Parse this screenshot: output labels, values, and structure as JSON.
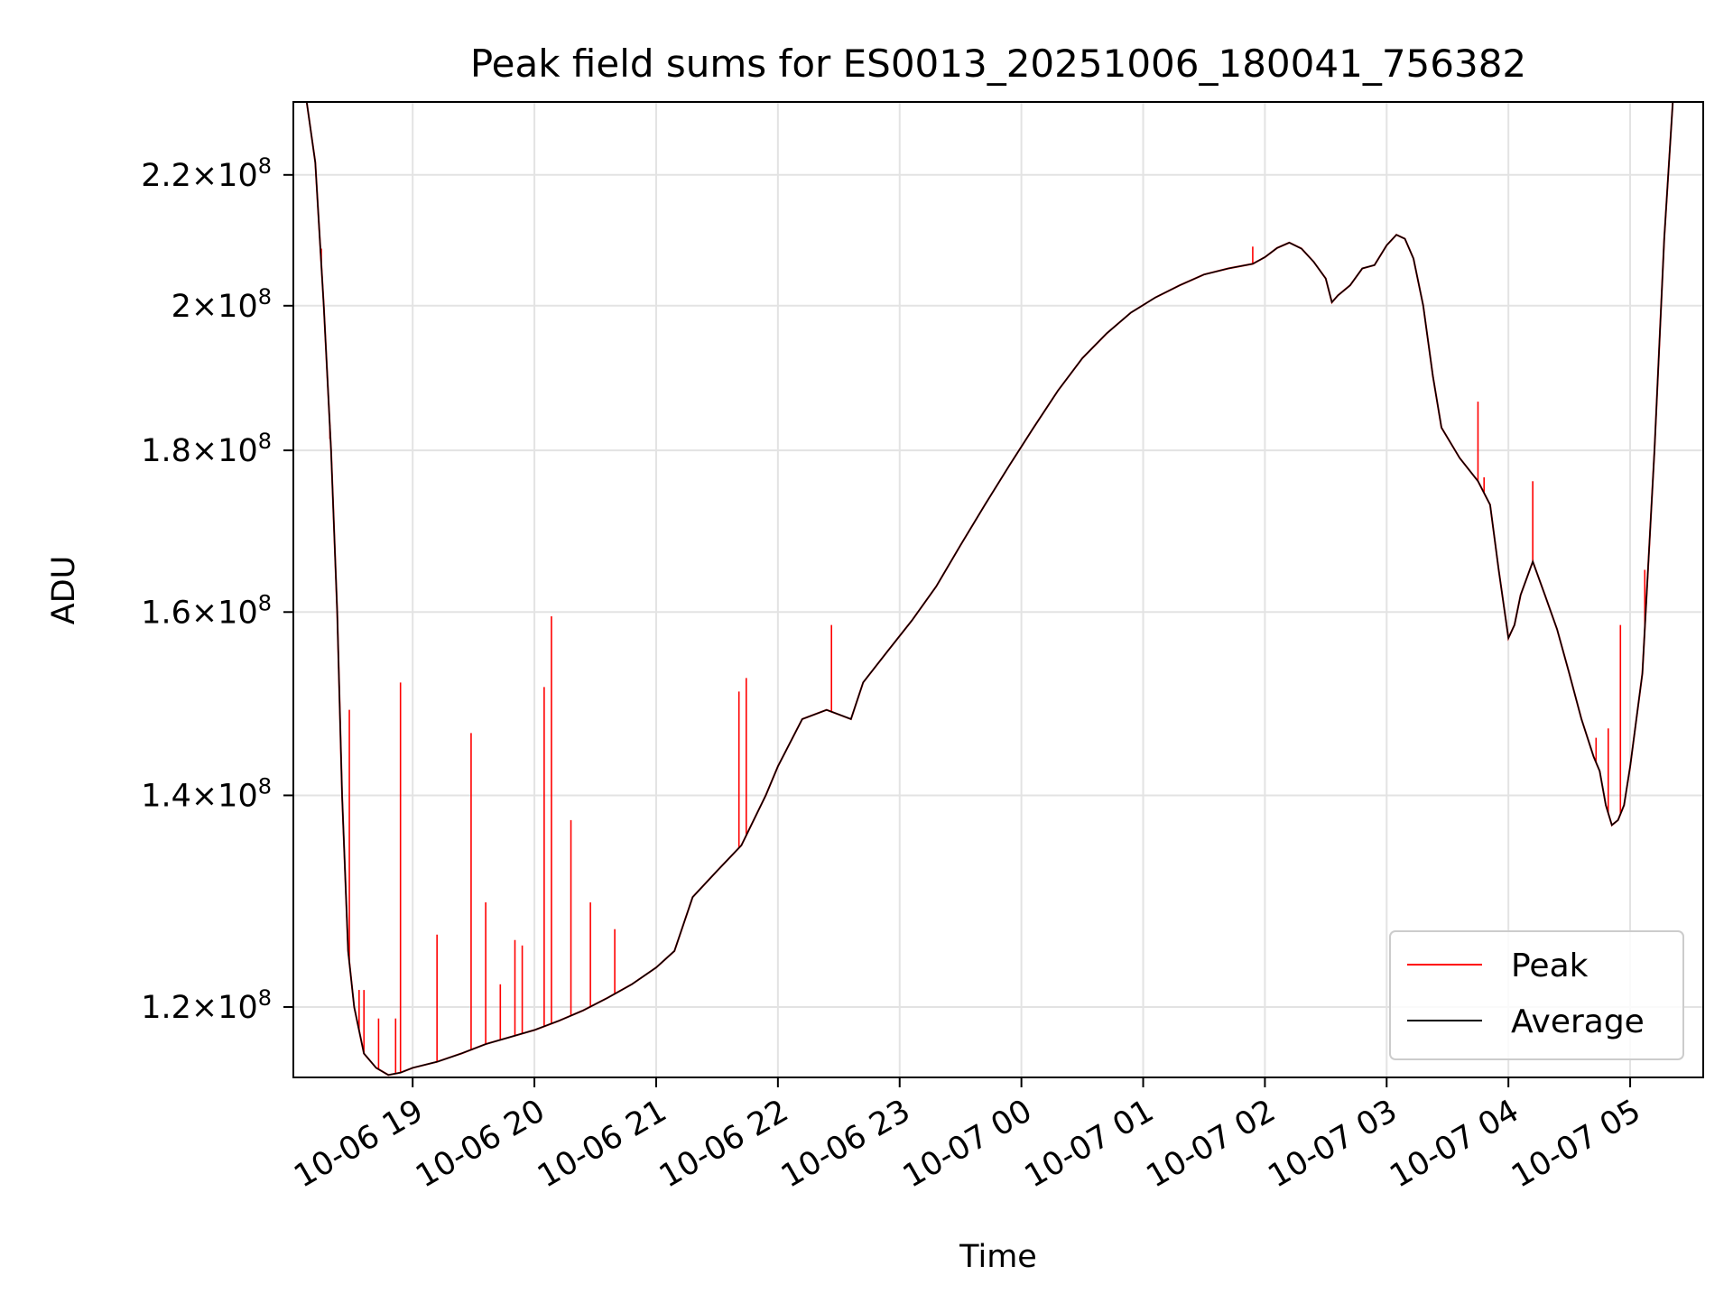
{
  "chart_data": {
    "type": "line",
    "title": "Peak field sums for ES0013_20251006_180041_756382",
    "xlabel": "Time",
    "ylabel": "ADU",
    "yscale": "log",
    "ylim": [
      114000000,
      232000000
    ],
    "xlim_hours": [
      18.02,
      29.6
    ],
    "grid": true,
    "legend": "lower right",
    "x_ticks": [
      {
        "h": 19,
        "label": "10-06 19"
      },
      {
        "h": 20,
        "label": "10-06 20"
      },
      {
        "h": 21,
        "label": "10-06 21"
      },
      {
        "h": 22,
        "label": "10-06 22"
      },
      {
        "h": 23,
        "label": "10-06 23"
      },
      {
        "h": 24,
        "label": "10-07 00"
      },
      {
        "h": 25,
        "label": "10-07 01"
      },
      {
        "h": 26,
        "label": "10-07 02"
      },
      {
        "h": 27,
        "label": "10-07 03"
      },
      {
        "h": 28,
        "label": "10-07 04"
      },
      {
        "h": 29,
        "label": "10-07 05"
      }
    ],
    "y_ticks": [
      {
        "v": 120000000,
        "mant": "1.2",
        "exp": "8"
      },
      {
        "v": 140000000,
        "mant": "1.4",
        "exp": "8"
      },
      {
        "v": 160000000,
        "mant": "1.6",
        "exp": "8"
      },
      {
        "v": 180000000,
        "mant": "1.8",
        "exp": "8"
      },
      {
        "v": 200000000,
        "mant": "2",
        "exp": "8"
      },
      {
        "v": 220000000,
        "mant": "2.2",
        "exp": "8"
      }
    ],
    "series": [
      {
        "name": "Average",
        "color": "#000000",
        "points": [
          [
            18.13,
            232000000
          ],
          [
            18.2,
            222000000
          ],
          [
            18.27,
            200000000
          ],
          [
            18.33,
            180000000
          ],
          [
            18.38,
            160000000
          ],
          [
            18.42,
            140000000
          ],
          [
            18.47,
            125000000
          ],
          [
            18.52,
            120000000
          ],
          [
            18.6,
            116000000
          ],
          [
            18.7,
            114800000
          ],
          [
            18.8,
            114200000
          ],
          [
            18.9,
            114400000
          ],
          [
            19.0,
            114800000
          ],
          [
            19.2,
            115300000
          ],
          [
            19.4,
            116000000
          ],
          [
            19.6,
            116800000
          ],
          [
            19.8,
            117400000
          ],
          [
            20.0,
            118000000
          ],
          [
            20.2,
            118800000
          ],
          [
            20.4,
            119700000
          ],
          [
            20.6,
            120800000
          ],
          [
            20.8,
            122000000
          ],
          [
            21.0,
            123500000
          ],
          [
            21.15,
            125000000
          ],
          [
            21.3,
            130000000
          ],
          [
            21.5,
            132500000
          ],
          [
            21.7,
            135000000
          ],
          [
            21.9,
            140000000
          ],
          [
            22.0,
            143000000
          ],
          [
            22.2,
            148000000
          ],
          [
            22.4,
            149000000
          ],
          [
            22.5,
            148500000
          ],
          [
            22.6,
            148000000
          ],
          [
            22.7,
            152000000
          ],
          [
            22.9,
            155500000
          ],
          [
            23.1,
            159000000
          ],
          [
            23.3,
            163000000
          ],
          [
            23.5,
            168000000
          ],
          [
            23.7,
            173000000
          ],
          [
            23.9,
            178000000
          ],
          [
            24.1,
            183000000
          ],
          [
            24.3,
            188000000
          ],
          [
            24.5,
            192500000
          ],
          [
            24.7,
            196000000
          ],
          [
            24.9,
            199000000
          ],
          [
            25.1,
            201200000
          ],
          [
            25.3,
            203000000
          ],
          [
            25.5,
            204600000
          ],
          [
            25.7,
            205500000
          ],
          [
            25.9,
            206200000
          ],
          [
            26.0,
            207200000
          ],
          [
            26.1,
            208600000
          ],
          [
            26.2,
            209400000
          ],
          [
            26.3,
            208500000
          ],
          [
            26.4,
            206500000
          ],
          [
            26.5,
            204000000
          ],
          [
            26.55,
            200500000
          ],
          [
            26.6,
            201500000
          ],
          [
            26.7,
            203000000
          ],
          [
            26.8,
            205500000
          ],
          [
            26.9,
            206000000
          ],
          [
            27.0,
            209000000
          ],
          [
            27.08,
            210600000
          ],
          [
            27.15,
            210000000
          ],
          [
            27.22,
            207000000
          ],
          [
            27.3,
            200000000
          ],
          [
            27.38,
            190000000
          ],
          [
            27.45,
            183000000
          ],
          [
            27.6,
            179000000
          ],
          [
            27.75,
            176000000
          ],
          [
            27.85,
            173000000
          ],
          [
            27.92,
            165000000
          ],
          [
            28.0,
            157000000
          ],
          [
            28.05,
            158500000
          ],
          [
            28.1,
            162000000
          ],
          [
            28.2,
            166000000
          ],
          [
            28.3,
            162000000
          ],
          [
            28.4,
            158000000
          ],
          [
            28.5,
            153000000
          ],
          [
            28.6,
            148000000
          ],
          [
            28.7,
            144000000
          ],
          [
            28.75,
            142500000
          ],
          [
            28.8,
            139000000
          ],
          [
            28.85,
            137000000
          ],
          [
            28.9,
            137500000
          ],
          [
            28.95,
            139000000
          ],
          [
            29.0,
            143000000
          ],
          [
            29.1,
            153000000
          ],
          [
            29.2,
            180000000
          ],
          [
            29.28,
            210000000
          ],
          [
            29.35,
            232000000
          ]
        ]
      },
      {
        "name": "Peak",
        "color": "#ff0000",
        "spikes": [
          [
            18.25,
            208500000
          ],
          [
            18.32,
            181500000
          ],
          [
            18.48,
            149000000
          ],
          [
            18.56,
            121500000
          ],
          [
            18.6,
            121500000
          ],
          [
            18.72,
            119000000
          ],
          [
            18.86,
            119000000
          ],
          [
            18.9,
            152000000
          ],
          [
            19.2,
            126500000
          ],
          [
            19.48,
            146500000
          ],
          [
            19.6,
            129500000
          ],
          [
            19.72,
            122000000
          ],
          [
            19.84,
            126000000
          ],
          [
            19.9,
            125500000
          ],
          [
            20.08,
            151500000
          ],
          [
            20.14,
            159500000
          ],
          [
            20.3,
            137500000
          ],
          [
            20.46,
            129500000
          ],
          [
            20.66,
            127000000
          ],
          [
            21.68,
            151000000
          ],
          [
            21.74,
            152500000
          ],
          [
            22.44,
            158500000
          ],
          [
            25.9,
            208800000
          ],
          [
            27.75,
            186500000
          ],
          [
            27.8,
            176500000
          ],
          [
            28.2,
            176000000
          ],
          [
            28.72,
            146000000
          ],
          [
            28.82,
            147000000
          ],
          [
            28.92,
            158500000
          ],
          [
            29.12,
            165000000
          ]
        ]
      }
    ]
  }
}
